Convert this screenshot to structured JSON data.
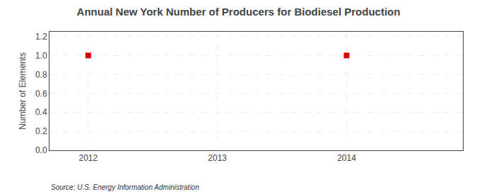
{
  "chart_data": {
    "type": "scatter",
    "title": "Annual New York Number of Producers for Biodiesel Production",
    "ylabel": "Number of Elements",
    "annotations": [
      "Source: U.S. Energy Information Administration"
    ],
    "x": [
      2012,
      2014
    ],
    "values": [
      1.0,
      1.0
    ],
    "color": "#dd0000",
    "marker": "square",
    "xlim": [
      2011.7,
      2014.9
    ],
    "ylim": [
      0.0,
      1.25
    ],
    "xticks": [
      2012,
      2013,
      2014
    ],
    "yticks": [
      {
        "value": 0.0,
        "label": "0.0"
      },
      0.2,
      0.4,
      0.6,
      0.8,
      {
        "value": 1.0,
        "label": "1.0"
      },
      1.2
    ],
    "grid": true
  }
}
